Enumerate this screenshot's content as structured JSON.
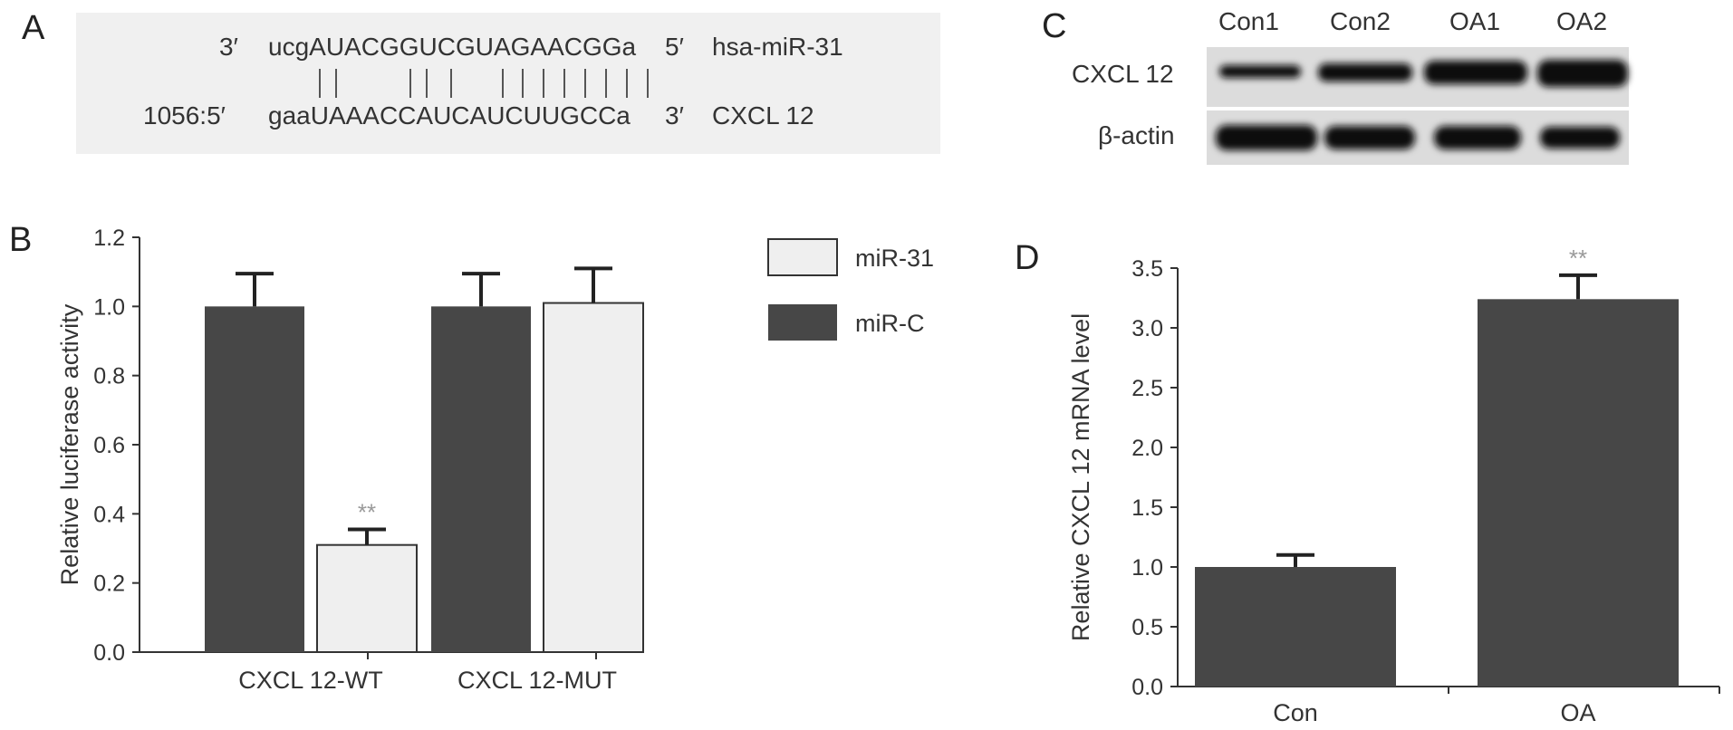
{
  "panels": {
    "a": "A",
    "b": "B",
    "c": "C",
    "d": "D"
  },
  "alignment": {
    "top_row": {
      "prefix": "3′",
      "sequence": "ucgAUACGGUCGUAGAACGGa",
      "suffix": "5′",
      "name": "hsa-miR-31"
    },
    "bottom_row": {
      "prefix": "1056:5′",
      "sequence": "gaaUAAACCAUCAUCUUGCCa",
      "suffix": "3′",
      "name": "CXCL 12"
    }
  },
  "blot": {
    "lanes": [
      "Con1",
      "Con2",
      "OA1",
      "OA2"
    ],
    "rows": [
      "CXCL 12",
      "β-actin"
    ],
    "colors": {
      "background": "#dcdcdc",
      "band": "#111111"
    }
  },
  "colors": {
    "dark_bar": "#474747",
    "light_bar": "#efefef",
    "bar_stroke": "#333333",
    "axis": "#333333",
    "significance": "#999999"
  },
  "chart_data": [
    {
      "type": "bar",
      "panel": "B",
      "categories": [
        "CXCL 12-WT",
        "CXCL 12-MUT"
      ],
      "series": [
        {
          "name": "miR-C",
          "values": [
            1.0,
            1.0
          ],
          "errors": [
            0.095,
            0.095
          ],
          "color": "#474747"
        },
        {
          "name": "miR-31",
          "values": [
            0.31,
            1.01
          ],
          "errors": [
            0.045,
            0.1
          ],
          "color": "#efefef"
        }
      ],
      "annotations": [
        {
          "category": "CXCL 12-WT",
          "series": "miR-31",
          "text": "**"
        }
      ],
      "ylabel": "Relative luciferase activity",
      "ylim": [
        0,
        1.2
      ],
      "yticks": [
        "0.0",
        "0.2",
        "0.4",
        "0.6",
        "0.8",
        "1.0",
        "1.2"
      ],
      "legend": {
        "placement": "right",
        "entries": [
          "miR-31",
          "miR-C"
        ]
      }
    },
    {
      "type": "bar",
      "panel": "D",
      "categories": [
        "Con",
        "OA"
      ],
      "values": [
        1.0,
        3.24
      ],
      "errors": [
        0.1,
        0.2
      ],
      "annotations": [
        {
          "category": "OA",
          "text": "**"
        }
      ],
      "ylabel": "Relative CXCL 12 mRNA level",
      "ylim": [
        0,
        3.5
      ],
      "yticks": [
        "0.0",
        "0.5",
        "1.0",
        "1.5",
        "2.0",
        "2.5",
        "3.0",
        "3.5"
      ]
    }
  ]
}
